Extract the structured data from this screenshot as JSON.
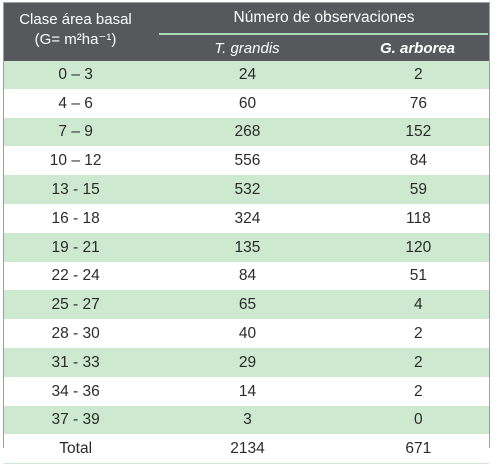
{
  "header": {
    "class_label_line1": "Clase área basal",
    "class_label_line2": "(G= m²ha⁻¹)",
    "group_label": "Número de observaciones",
    "col1_label": "T. grandis",
    "col2_label": "G. arborea"
  },
  "rows": [
    {
      "clase": "0 – 3",
      "t_grandis": "24",
      "g_arborea": "2"
    },
    {
      "clase": "4 – 6",
      "t_grandis": "60",
      "g_arborea": "76"
    },
    {
      "clase": "7 – 9",
      "t_grandis": "268",
      "g_arborea": "152"
    },
    {
      "clase": "10 – 12",
      "t_grandis": "556",
      "g_arborea": "84"
    },
    {
      "clase": "13 - 15",
      "t_grandis": "532",
      "g_arborea": "59"
    },
    {
      "clase": "16 - 18",
      "t_grandis": "324",
      "g_arborea": "118"
    },
    {
      "clase": "19 - 21",
      "t_grandis": "135",
      "g_arborea": "120"
    },
    {
      "clase": "22 - 24",
      "t_grandis": "84",
      "g_arborea": "51"
    },
    {
      "clase": "25 - 27",
      "t_grandis": "65",
      "g_arborea": "4"
    },
    {
      "clase": "28 - 30",
      "t_grandis": "40",
      "g_arborea": "2"
    },
    {
      "clase": "31 - 33",
      "t_grandis": "29",
      "g_arborea": "2"
    },
    {
      "clase": "34 - 36",
      "t_grandis": "14",
      "g_arborea": "2"
    },
    {
      "clase": "37 - 39",
      "t_grandis": "3",
      "g_arborea": "0"
    },
    {
      "clase": "Total",
      "t_grandis": "2134",
      "g_arborea": "671"
    }
  ]
}
